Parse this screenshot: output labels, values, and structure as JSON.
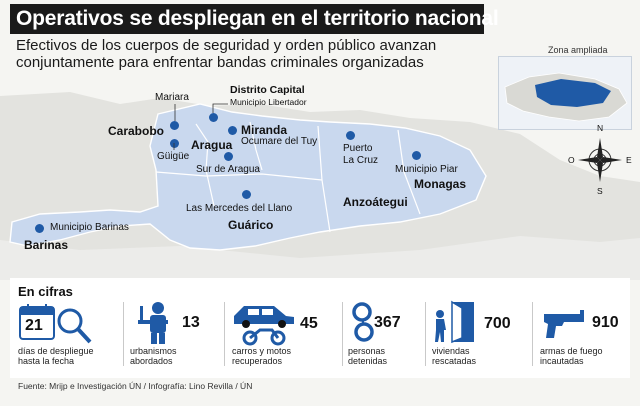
{
  "title": "Operativos se despliegan en el territorio nacional",
  "subtitle_line1": "Efectivos de los cuerpos de seguridad y orden público avanzan",
  "subtitle_line2": "conjuntamente para enfrentar bandas criminales organizadas",
  "inset_label": "Zona ampliada",
  "compass": {
    "n": "N",
    "s": "S",
    "e": "E",
    "o": "O"
  },
  "map": {
    "states": {
      "carabobo": "Carabobo",
      "aragua": "Aragua",
      "miranda": "Miranda",
      "guarico": "Guárico",
      "anzoategui": "Anzoátegui",
      "monagas": "Monagas",
      "barinas": "Barinas",
      "distrito_capital": "Distrito Capital"
    },
    "places": {
      "mariara": "Mariara",
      "libertador": "Municipio Libertador",
      "guigue": "Güigüe",
      "ocumare": "Ocumare del Tuy",
      "sur_aragua": "Sur de Aragua",
      "puerto_la_cruz_1": "Puerto",
      "puerto_la_cruz_2": "La Cruz",
      "piar": "Municipio Piar",
      "mercedes": "Las Mercedes del Llano",
      "mun_barinas": "Municipio Barinas"
    },
    "colors": {
      "region": "#c9d8ee",
      "dot": "#1f5aa6",
      "land": "#e3e3df"
    }
  },
  "cifras": {
    "title": "En cifras",
    "stats": [
      {
        "icon": "calendar-search-icon",
        "number": "",
        "caption1": "días de despliegue",
        "caption2": "hasta la fecha"
      },
      {
        "icon": "soldier-icon",
        "number": "13",
        "caption1": "urbanismos",
        "caption2": "abordados"
      },
      {
        "icon": "car-motorcycle-icon",
        "number": "45",
        "caption1": "carros y motos",
        "caption2": "recuperados"
      },
      {
        "icon": "handcuffs-icon",
        "number": "367",
        "caption1": "personas",
        "caption2": "detenidas"
      },
      {
        "icon": "door-person-icon",
        "number": "700",
        "caption1": "viviendas",
        "caption2": "rescatadas"
      },
      {
        "icon": "handgun-icon",
        "number": "910",
        "caption1": "armas de fuego",
        "caption2": "incautadas"
      }
    ],
    "calendar_number": "21"
  },
  "source": "Fuente: Mrijp e Investigación ÚN / Infografía: Lino Revilla / ÚN"
}
